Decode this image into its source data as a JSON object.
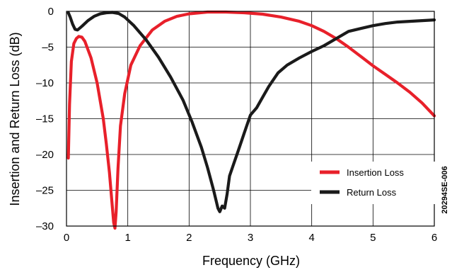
{
  "chart_data": {
    "type": "line",
    "xlabel": "Frequency (GHz)",
    "ylabel": "Insertion and Return Loss (dB)",
    "xlim": [
      0,
      6
    ],
    "ylim": [
      -30,
      0
    ],
    "x_ticks": [
      "0",
      "1",
      "2",
      "3",
      "4",
      "5",
      "6"
    ],
    "y_ticks": [
      "0",
      "–5",
      "–10",
      "–15",
      "–20",
      "–25",
      "–30"
    ],
    "x_tick_values": [
      0,
      1,
      2,
      3,
      4,
      5,
      6
    ],
    "y_tick_values": [
      0,
      -5,
      -10,
      -15,
      -20,
      -25,
      -30
    ],
    "grid": true,
    "legend_position": "bottom-right",
    "figure_id": "20294SE-006",
    "series": [
      {
        "name": "Insertion Loss",
        "color": "#e8202a",
        "points": [
          [
            0.03,
            -20.5
          ],
          [
            0.05,
            -13
          ],
          [
            0.08,
            -7
          ],
          [
            0.12,
            -4.5
          ],
          [
            0.16,
            -3.8
          ],
          [
            0.2,
            -3.5
          ],
          [
            0.25,
            -3.6
          ],
          [
            0.3,
            -4.2
          ],
          [
            0.4,
            -6.5
          ],
          [
            0.5,
            -10
          ],
          [
            0.6,
            -15
          ],
          [
            0.65,
            -18.5
          ],
          [
            0.7,
            -22.5
          ],
          [
            0.74,
            -26.5
          ],
          [
            0.77,
            -29.5
          ],
          [
            0.79,
            -30.3
          ],
          [
            0.81,
            -28
          ],
          [
            0.84,
            -22
          ],
          [
            0.88,
            -16
          ],
          [
            0.95,
            -11.5
          ],
          [
            1.05,
            -7.5
          ],
          [
            1.2,
            -4.8
          ],
          [
            1.4,
            -2.6
          ],
          [
            1.6,
            -1.4
          ],
          [
            1.8,
            -0.7
          ],
          [
            2.0,
            -0.35
          ],
          [
            2.3,
            -0.1
          ],
          [
            2.6,
            -0.1
          ],
          [
            2.9,
            -0.2
          ],
          [
            3.2,
            -0.4
          ],
          [
            3.5,
            -0.8
          ],
          [
            3.8,
            -1.4
          ],
          [
            4.0,
            -2.0
          ],
          [
            4.2,
            -2.8
          ],
          [
            4.4,
            -3.8
          ],
          [
            4.6,
            -5.0
          ],
          [
            4.8,
            -6.3
          ],
          [
            5.0,
            -7.6
          ],
          [
            5.2,
            -8.8
          ],
          [
            5.4,
            -10.0
          ],
          [
            5.6,
            -11.3
          ],
          [
            5.8,
            -12.8
          ],
          [
            6.0,
            -14.6
          ]
        ]
      },
      {
        "name": "Return Loss",
        "color": "#1a1a1a",
        "points": [
          [
            0.03,
            -0.2
          ],
          [
            0.06,
            -0.8
          ],
          [
            0.1,
            -1.8
          ],
          [
            0.14,
            -2.5
          ],
          [
            0.18,
            -2.6
          ],
          [
            0.25,
            -2.1
          ],
          [
            0.35,
            -1.3
          ],
          [
            0.45,
            -0.7
          ],
          [
            0.55,
            -0.35
          ],
          [
            0.65,
            -0.2
          ],
          [
            0.75,
            -0.15
          ],
          [
            0.85,
            -0.3
          ],
          [
            0.95,
            -0.8
          ],
          [
            1.1,
            -2.0
          ],
          [
            1.3,
            -4.0
          ],
          [
            1.5,
            -6.4
          ],
          [
            1.7,
            -9.2
          ],
          [
            1.9,
            -12.4
          ],
          [
            2.05,
            -15.5
          ],
          [
            2.2,
            -19.0
          ],
          [
            2.3,
            -21.8
          ],
          [
            2.4,
            -25.0
          ],
          [
            2.47,
            -27.5
          ],
          [
            2.5,
            -28.0
          ],
          [
            2.54,
            -27.2
          ],
          [
            2.58,
            -27.5
          ],
          [
            2.62,
            -25.5
          ],
          [
            2.66,
            -23.0
          ],
          [
            2.72,
            -21.5
          ],
          [
            2.8,
            -19.5
          ],
          [
            2.9,
            -17.0
          ],
          [
            3.0,
            -14.5
          ],
          [
            3.1,
            -13.5
          ],
          [
            3.2,
            -12.0
          ],
          [
            3.3,
            -10.5
          ],
          [
            3.45,
            -8.6
          ],
          [
            3.6,
            -7.5
          ],
          [
            3.8,
            -6.5
          ],
          [
            4.0,
            -5.6
          ],
          [
            4.2,
            -4.8
          ],
          [
            4.4,
            -3.8
          ],
          [
            4.6,
            -2.8
          ],
          [
            4.8,
            -2.4
          ],
          [
            5.0,
            -2.0
          ],
          [
            5.2,
            -1.7
          ],
          [
            5.4,
            -1.5
          ],
          [
            5.6,
            -1.4
          ],
          [
            5.8,
            -1.3
          ],
          [
            6.0,
            -1.2
          ]
        ]
      }
    ]
  }
}
